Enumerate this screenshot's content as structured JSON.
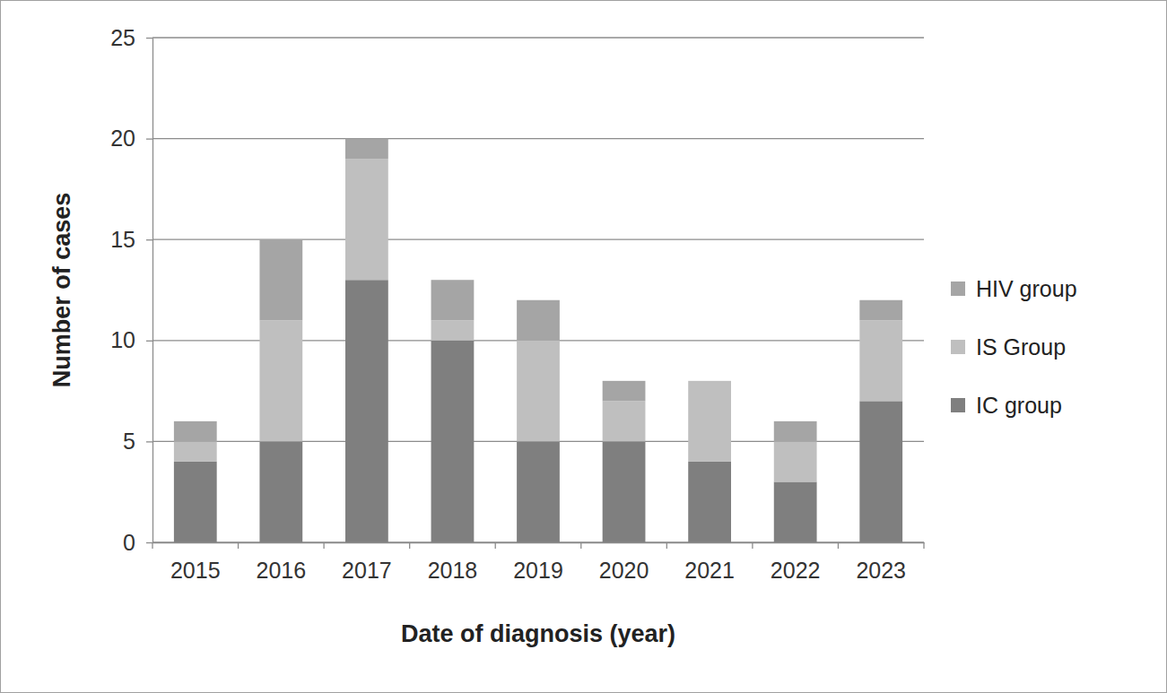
{
  "chart_data": {
    "type": "bar",
    "stacked": true,
    "grid": true,
    "legend": "right",
    "x_label": "Date of diagnosis (year)",
    "y_label": "Number of cases",
    "categories": [
      "2015",
      "2016",
      "2017",
      "2018",
      "2019",
      "2020",
      "2021",
      "2022",
      "2023"
    ],
    "series": [
      {
        "name": "IC group",
        "color": "#7f7f7f",
        "values": [
          4,
          5,
          13,
          10,
          5,
          5,
          4,
          3,
          7
        ]
      },
      {
        "name": "IS Group",
        "color": "#bfbfbf",
        "values": [
          1,
          6,
          6,
          1,
          5,
          2,
          4,
          2,
          4
        ]
      },
      {
        "name": "HIV group",
        "color": "#a5a5a5",
        "values": [
          1,
          4,
          1,
          2,
          2,
          1,
          0,
          1,
          1
        ]
      }
    ],
    "ylim": [
      0,
      25
    ],
    "yticks": [
      0,
      5,
      10,
      15,
      20,
      25
    ]
  }
}
